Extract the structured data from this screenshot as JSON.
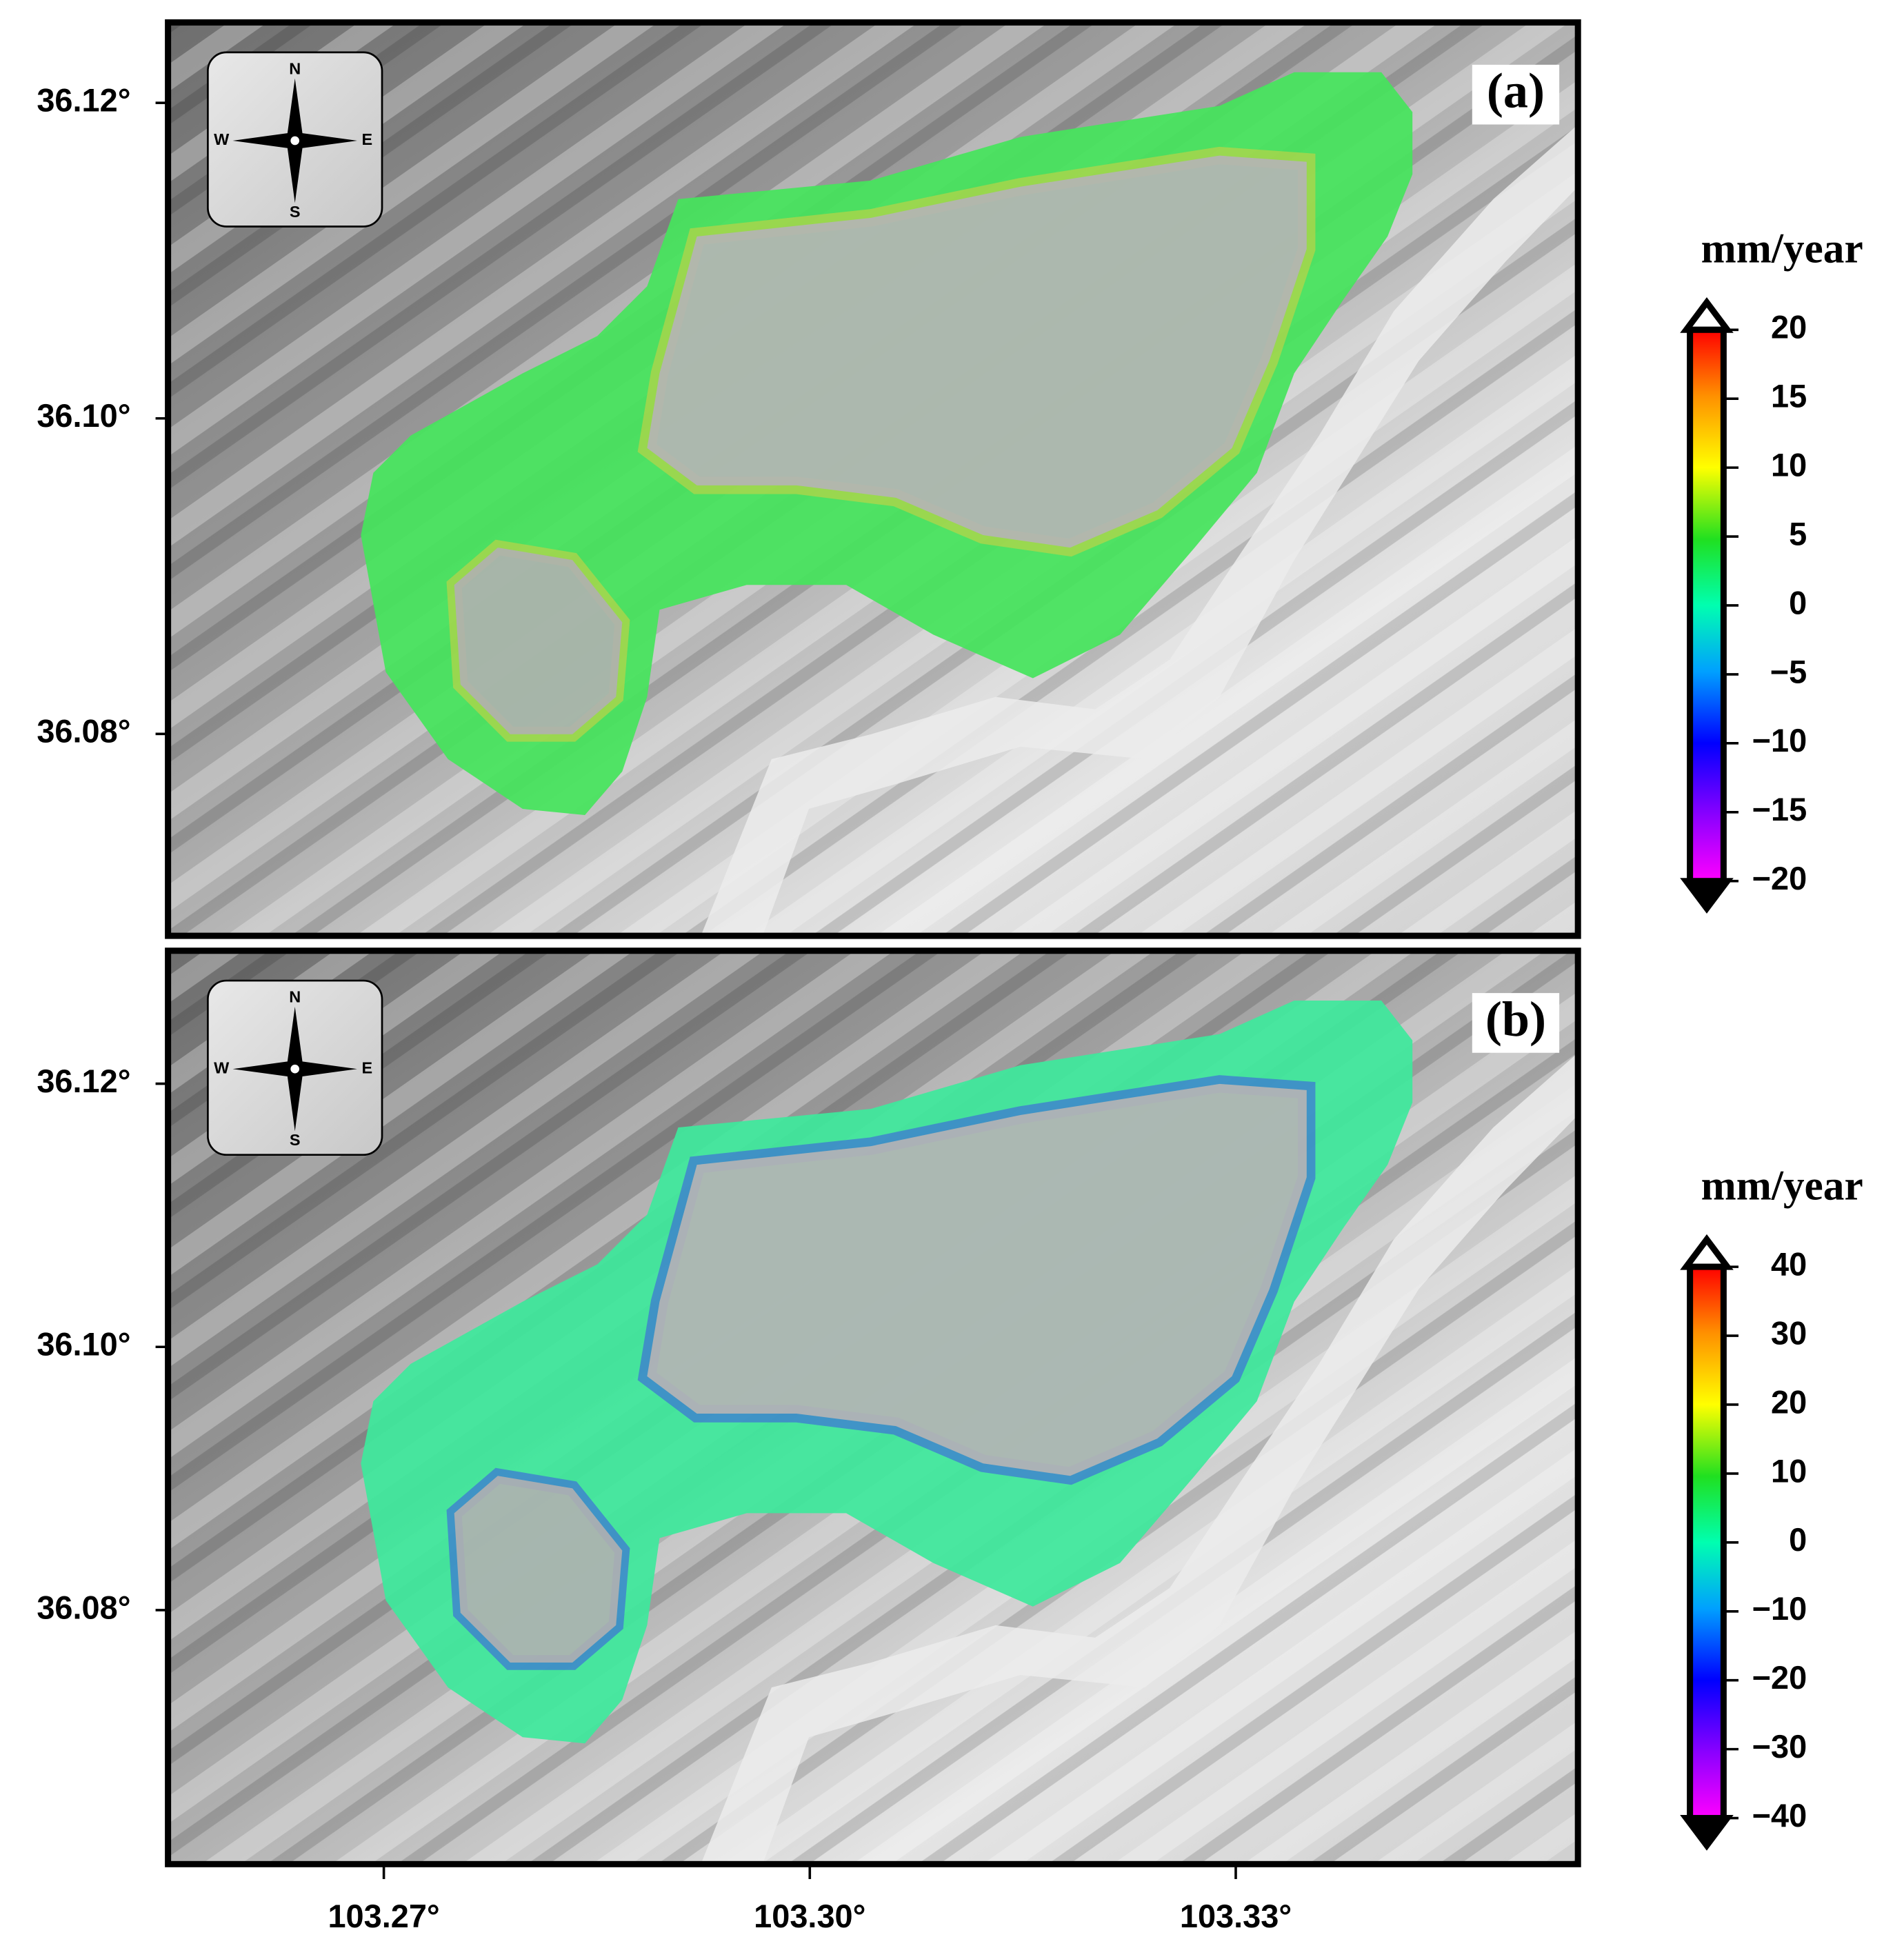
{
  "lon_lim": [
    103.2548,
    103.3541
  ],
  "lon_ticks": [
    {
      "value": 103.27,
      "label": "103.27°"
    },
    {
      "value": 103.3,
      "label": "103.30°"
    },
    {
      "value": 103.33,
      "label": "103.33°"
    }
  ],
  "compass": {
    "north": "N",
    "south": "S",
    "west": "W",
    "east": "E"
  },
  "panels": [
    {
      "label": "(a)",
      "lat_lim": [
        36.0672,
        36.1251
      ],
      "lat_ticks": [
        {
          "value": 36.12,
          "label": "36.12°"
        },
        {
          "value": 36.1,
          "label": "36.10°"
        },
        {
          "value": 36.08,
          "label": "36.08°"
        }
      ],
      "colorbar": {
        "title": "mm/year",
        "lim": [
          -20,
          20
        ],
        "ticks": [
          20,
          15,
          10,
          5,
          0,
          {
            "value": -5,
            "label": "−5"
          },
          {
            "value": -10,
            "label": "−10"
          },
          {
            "value": -15,
            "label": "−15"
          },
          {
            "value": -20,
            "label": "−20"
          }
        ]
      }
    },
    {
      "label": "(b)",
      "lat_lim": [
        36.0607,
        36.1301
      ],
      "lat_ticks": [
        {
          "value": 36.12,
          "label": "36.12°"
        },
        {
          "value": 36.1,
          "label": "36.10°"
        },
        {
          "value": 36.08,
          "label": "36.08°"
        }
      ],
      "colorbar": {
        "title": "mm/year",
        "lim": [
          -40,
          40
        ],
        "ticks": [
          40,
          30,
          20,
          10,
          0,
          {
            "value": -10,
            "label": "−10"
          },
          {
            "value": -20,
            "label": "−20"
          },
          {
            "value": -30,
            "label": "−30"
          },
          {
            "value": -40,
            "label": "−40"
          }
        ]
      }
    }
  ]
}
